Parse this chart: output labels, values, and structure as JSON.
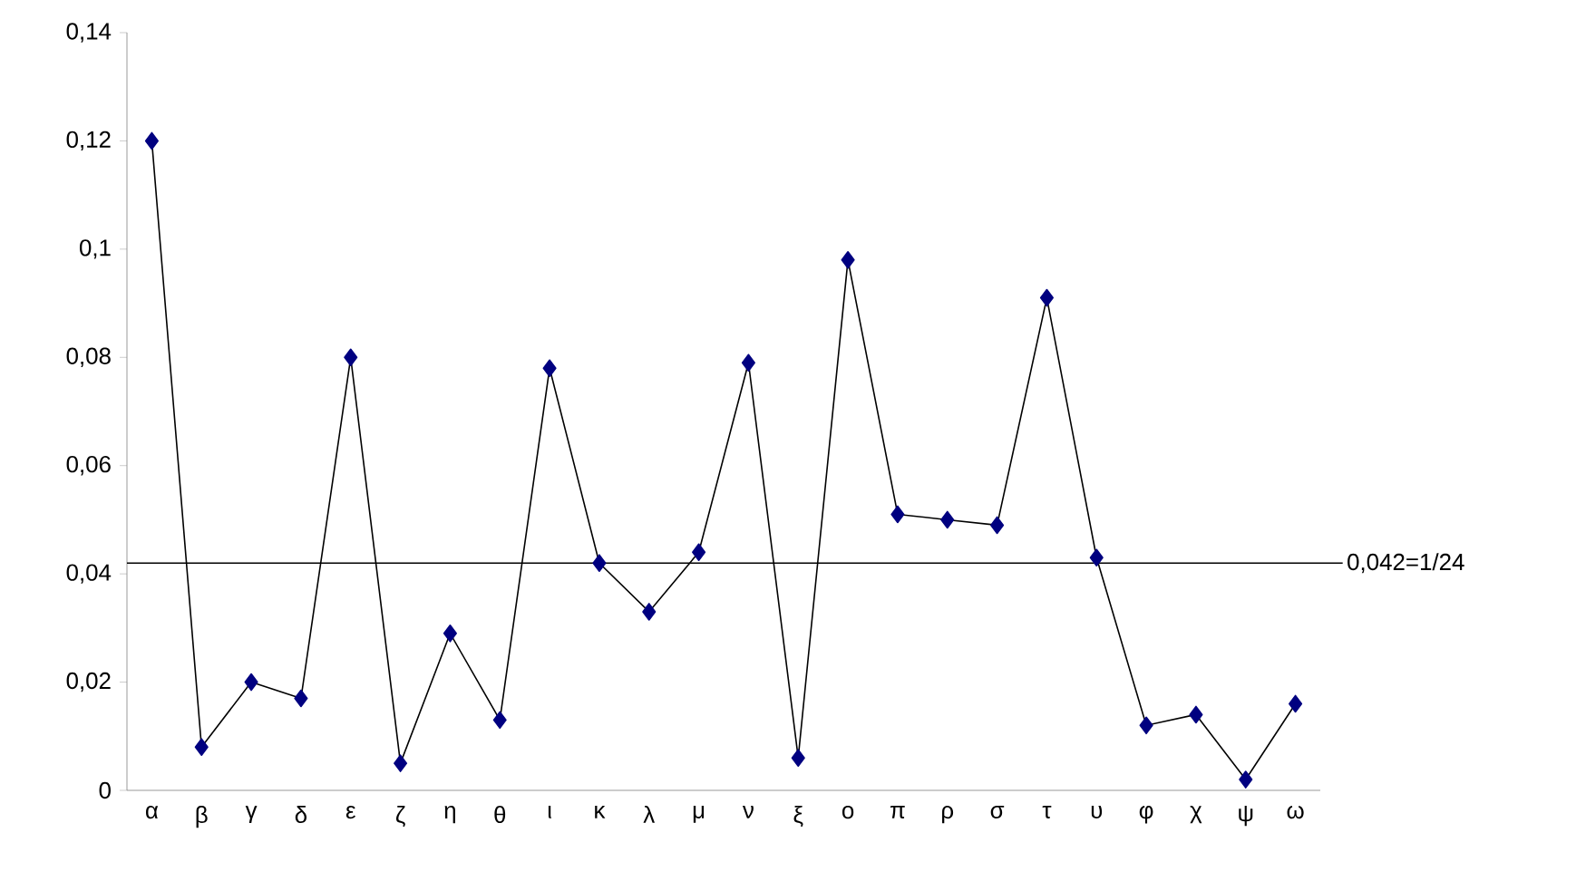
{
  "chart_data": {
    "type": "line",
    "categories": [
      "α",
      "β",
      "γ",
      "δ",
      "ε",
      "ζ",
      "η",
      "θ",
      "ι",
      "κ",
      "λ",
      "μ",
      "ν",
      "ξ",
      "ο",
      "π",
      "ρ",
      "σ",
      "τ",
      "υ",
      "φ",
      "χ",
      "ψ",
      "ω"
    ],
    "series": [
      {
        "color": "#000080",
        "values": [
          0.12,
          0.008,
          0.02,
          0.017,
          0.08,
          0.005,
          0.029,
          0.013,
          0.078,
          0.042,
          0.033,
          0.044,
          0.079,
          0.006,
          0.098,
          0.051,
          0.05,
          0.049,
          0.091,
          0.043,
          0.012,
          0.014,
          0.002,
          0.016
        ]
      }
    ],
    "ylim": [
      0,
      0.14
    ],
    "yticks": [
      0,
      {
        "value": 0.02,
        "label": "0,02"
      },
      {
        "value": 0.04,
        "label": "0,04"
      },
      {
        "value": 0.06,
        "label": "0,06"
      },
      {
        "value": 0.08,
        "label": "0,08"
      },
      {
        "value": 0.1,
        "label": "0,1"
      },
      {
        "value": 0.12,
        "label": "0,12"
      },
      {
        "value": 0.14,
        "label": "0,14"
      }
    ],
    "ref_lines": [
      {
        "axis": "y",
        "value": 0.042,
        "label": "0,042=1/24"
      }
    ],
    "grid": false,
    "marker": "diamond",
    "line_style": "solid"
  }
}
